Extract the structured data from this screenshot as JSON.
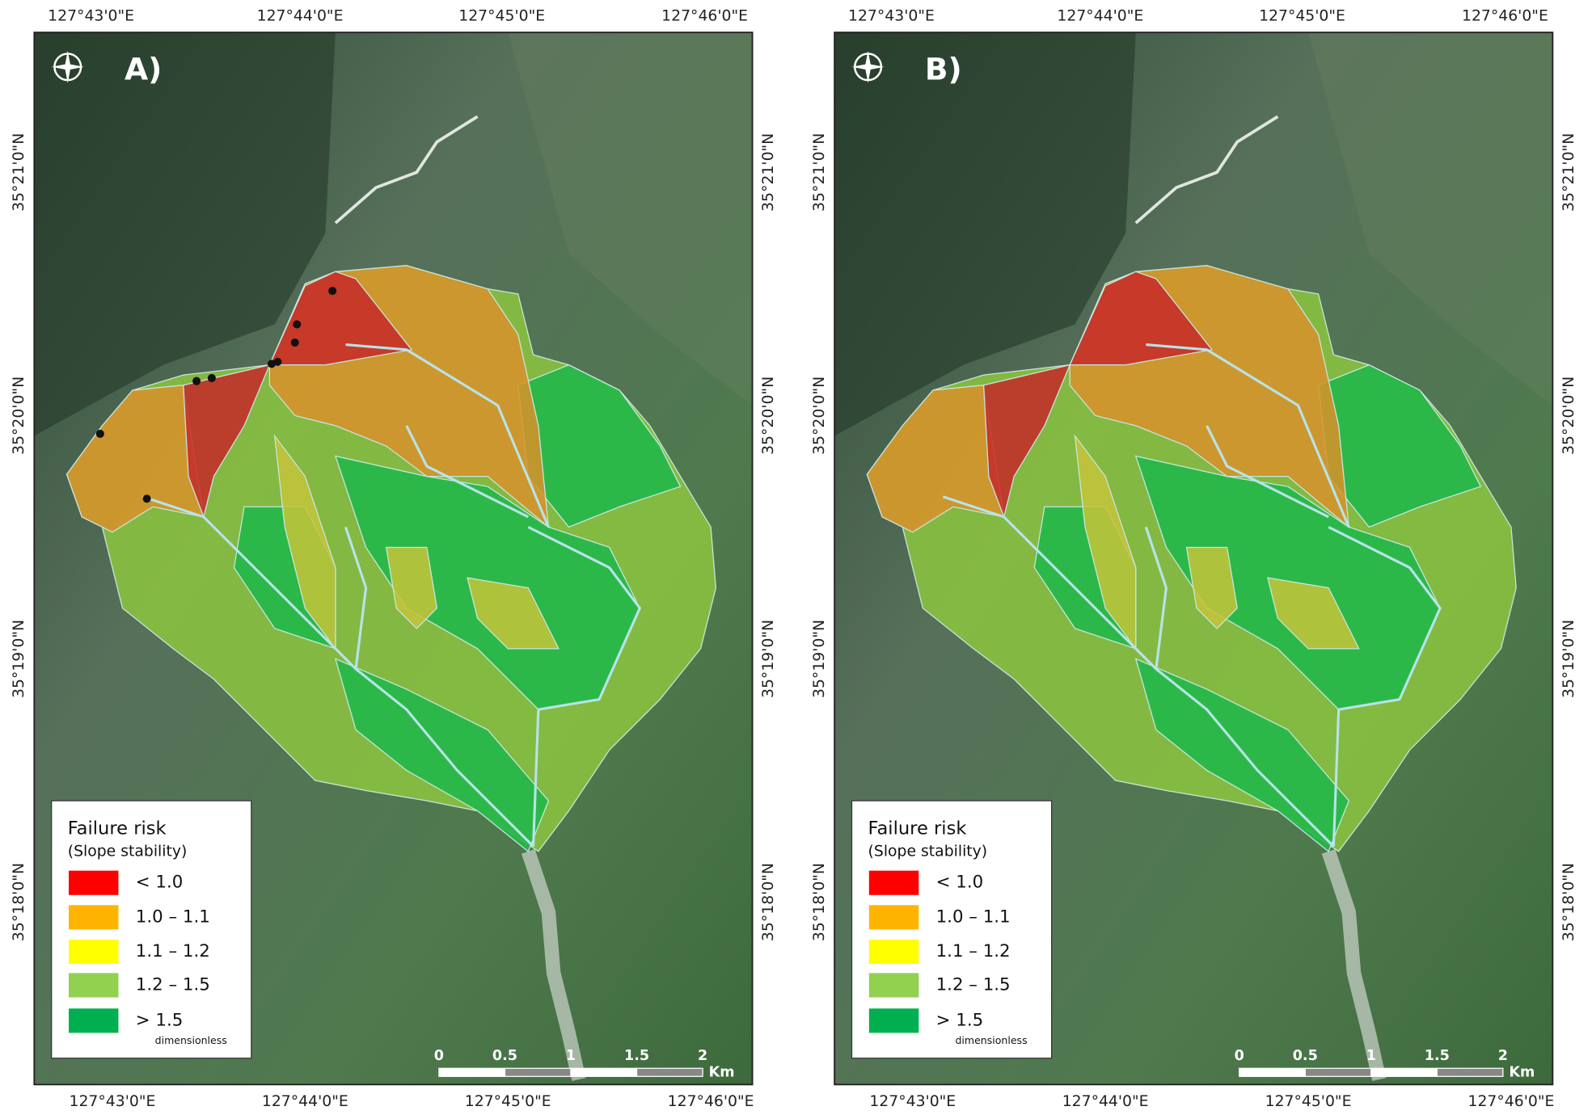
{
  "panels": [
    {
      "label": "A)",
      "top_labels": [
        "127°43'0\"E",
        "127°44'0\"E",
        "127°45'0\"E",
        "127°46'0\"E"
      ],
      "bottom_labels": [
        "127°43'0\"E",
        "127°44'0\"E",
        "127°45'0\"E",
        "127°46'0\"E"
      ],
      "left_labels": [
        "35°21'0\"N",
        "35°20'0\"N",
        "35°19'0\"N",
        "35°18'0\"N"
      ],
      "right_labels": [
        "35°21'0\"N",
        "35°20'0\"N",
        "35°19'0\"N",
        "35°18'0\"N"
      ],
      "legend": {
        "title": "Failure risk",
        "subtitle": "(Slope stability)",
        "items": [
          {
            "label": "< 1.0",
            "color": "#ff0000"
          },
          {
            "label": "1.0 – 1.1",
            "color": "#ffb400"
          },
          {
            "label": "1.1 – 1.2",
            "color": "#ffff00"
          },
          {
            "label": "1.2 – 1.5",
            "color": "#92d050"
          },
          {
            "label": "> 1.5",
            "color": "#00b050"
          }
        ],
        "unit": "dimensionless"
      },
      "scale": {
        "ticks": [
          "0",
          "0.5",
          "1",
          "1.5",
          "2"
        ],
        "unit": "Km"
      }
    },
    {
      "label": "B)",
      "top_labels": [
        "127°43'0\"E",
        "127°44'0\"E",
        "127°45'0\"E",
        "127°46'0\"E"
      ],
      "bottom_labels": [
        "127°43'0\"E",
        "127°44'0\"E",
        "127°45'0\"E",
        "127°46'0\"E"
      ],
      "left_labels": [
        "35°21'0\"N",
        "35°20'0\"N",
        "35°19'0\"N",
        "35°18'0\"N"
      ],
      "right_labels": [
        "35°21'0\"N",
        "35°20'0\"N",
        "35°19'0\"N",
        "35°18'0\"N"
      ],
      "legend": {
        "title": "Failure risk",
        "subtitle": "(Slope stability)",
        "items": [
          {
            "label": "< 1.0",
            "color": "#ff0000"
          },
          {
            "label": "1.0 – 1.1",
            "color": "#ffb400"
          },
          {
            "label": "1.1 – 1.2",
            "color": "#ffff00"
          },
          {
            "label": "1.2 – 1.5",
            "color": "#92d050"
          },
          {
            "label": "> 1.5",
            "color": "#00b050"
          }
        ],
        "unit": "dimensionless"
      },
      "scale": {
        "ticks": [
          "0",
          "0.5",
          "1",
          "1.5",
          "2"
        ],
        "unit": "Km"
      }
    }
  ]
}
